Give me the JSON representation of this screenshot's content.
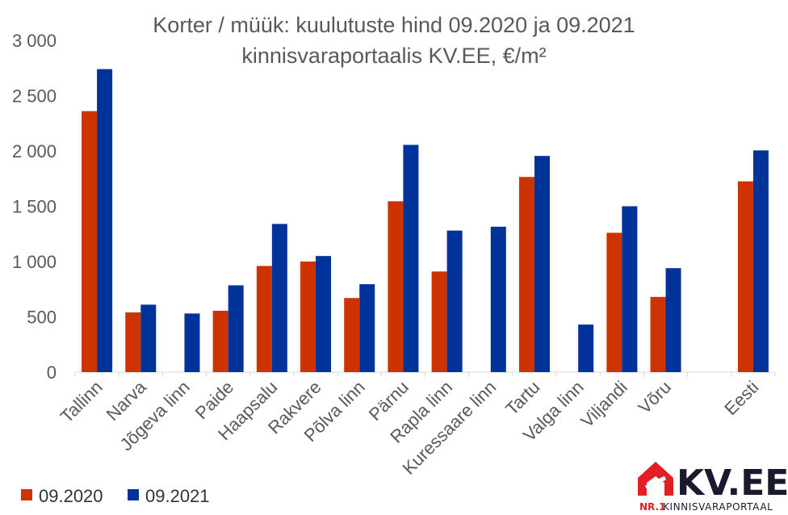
{
  "chart_data": {
    "type": "bar",
    "title_line1": "Korter / müük: kuulutuste hind 09.2020 ja 09.2021",
    "title_line2": "kinnisvaraportaalis KV.EE, €/m²",
    "categories": [
      "Tallinn",
      "Narva",
      "Jõgeva linn",
      "Paide",
      "Haapsalu",
      "Rakvere",
      "Põlva linn",
      "Pärnu",
      "Rapla linn",
      "Kuressaare linn",
      "Tartu",
      "Valga linn",
      "Viljandi",
      "Võru",
      "",
      "Eesti"
    ],
    "series": [
      {
        "name": "09.2020",
        "color": "#CC3300",
        "values": [
          2360,
          540,
          null,
          555,
          960,
          1000,
          670,
          1545,
          910,
          null,
          1765,
          null,
          1260,
          680,
          null,
          1725
        ]
      },
      {
        "name": "09.2021",
        "color": "#003399",
        "values": [
          2740,
          610,
          530,
          785,
          1340,
          1050,
          795,
          2055,
          1280,
          1315,
          1955,
          430,
          1500,
          940,
          null,
          2005
        ]
      }
    ],
    "ylim": [
      0,
      3000
    ],
    "yticks": [
      0,
      500,
      1000,
      1500,
      2000,
      2500,
      3000
    ],
    "ytick_labels": [
      "0",
      "500",
      "1 000",
      "1 500",
      "2 000",
      "2 500",
      "3 000"
    ],
    "grid": false,
    "legend_position": "bottom-left"
  },
  "logo": {
    "name": "KV.EE",
    "tagline_prefix": "NR.1",
    "tagline": "KINNISVARAPORTAAL",
    "accent": "#E31E24",
    "dark": "#1a1a2e"
  }
}
